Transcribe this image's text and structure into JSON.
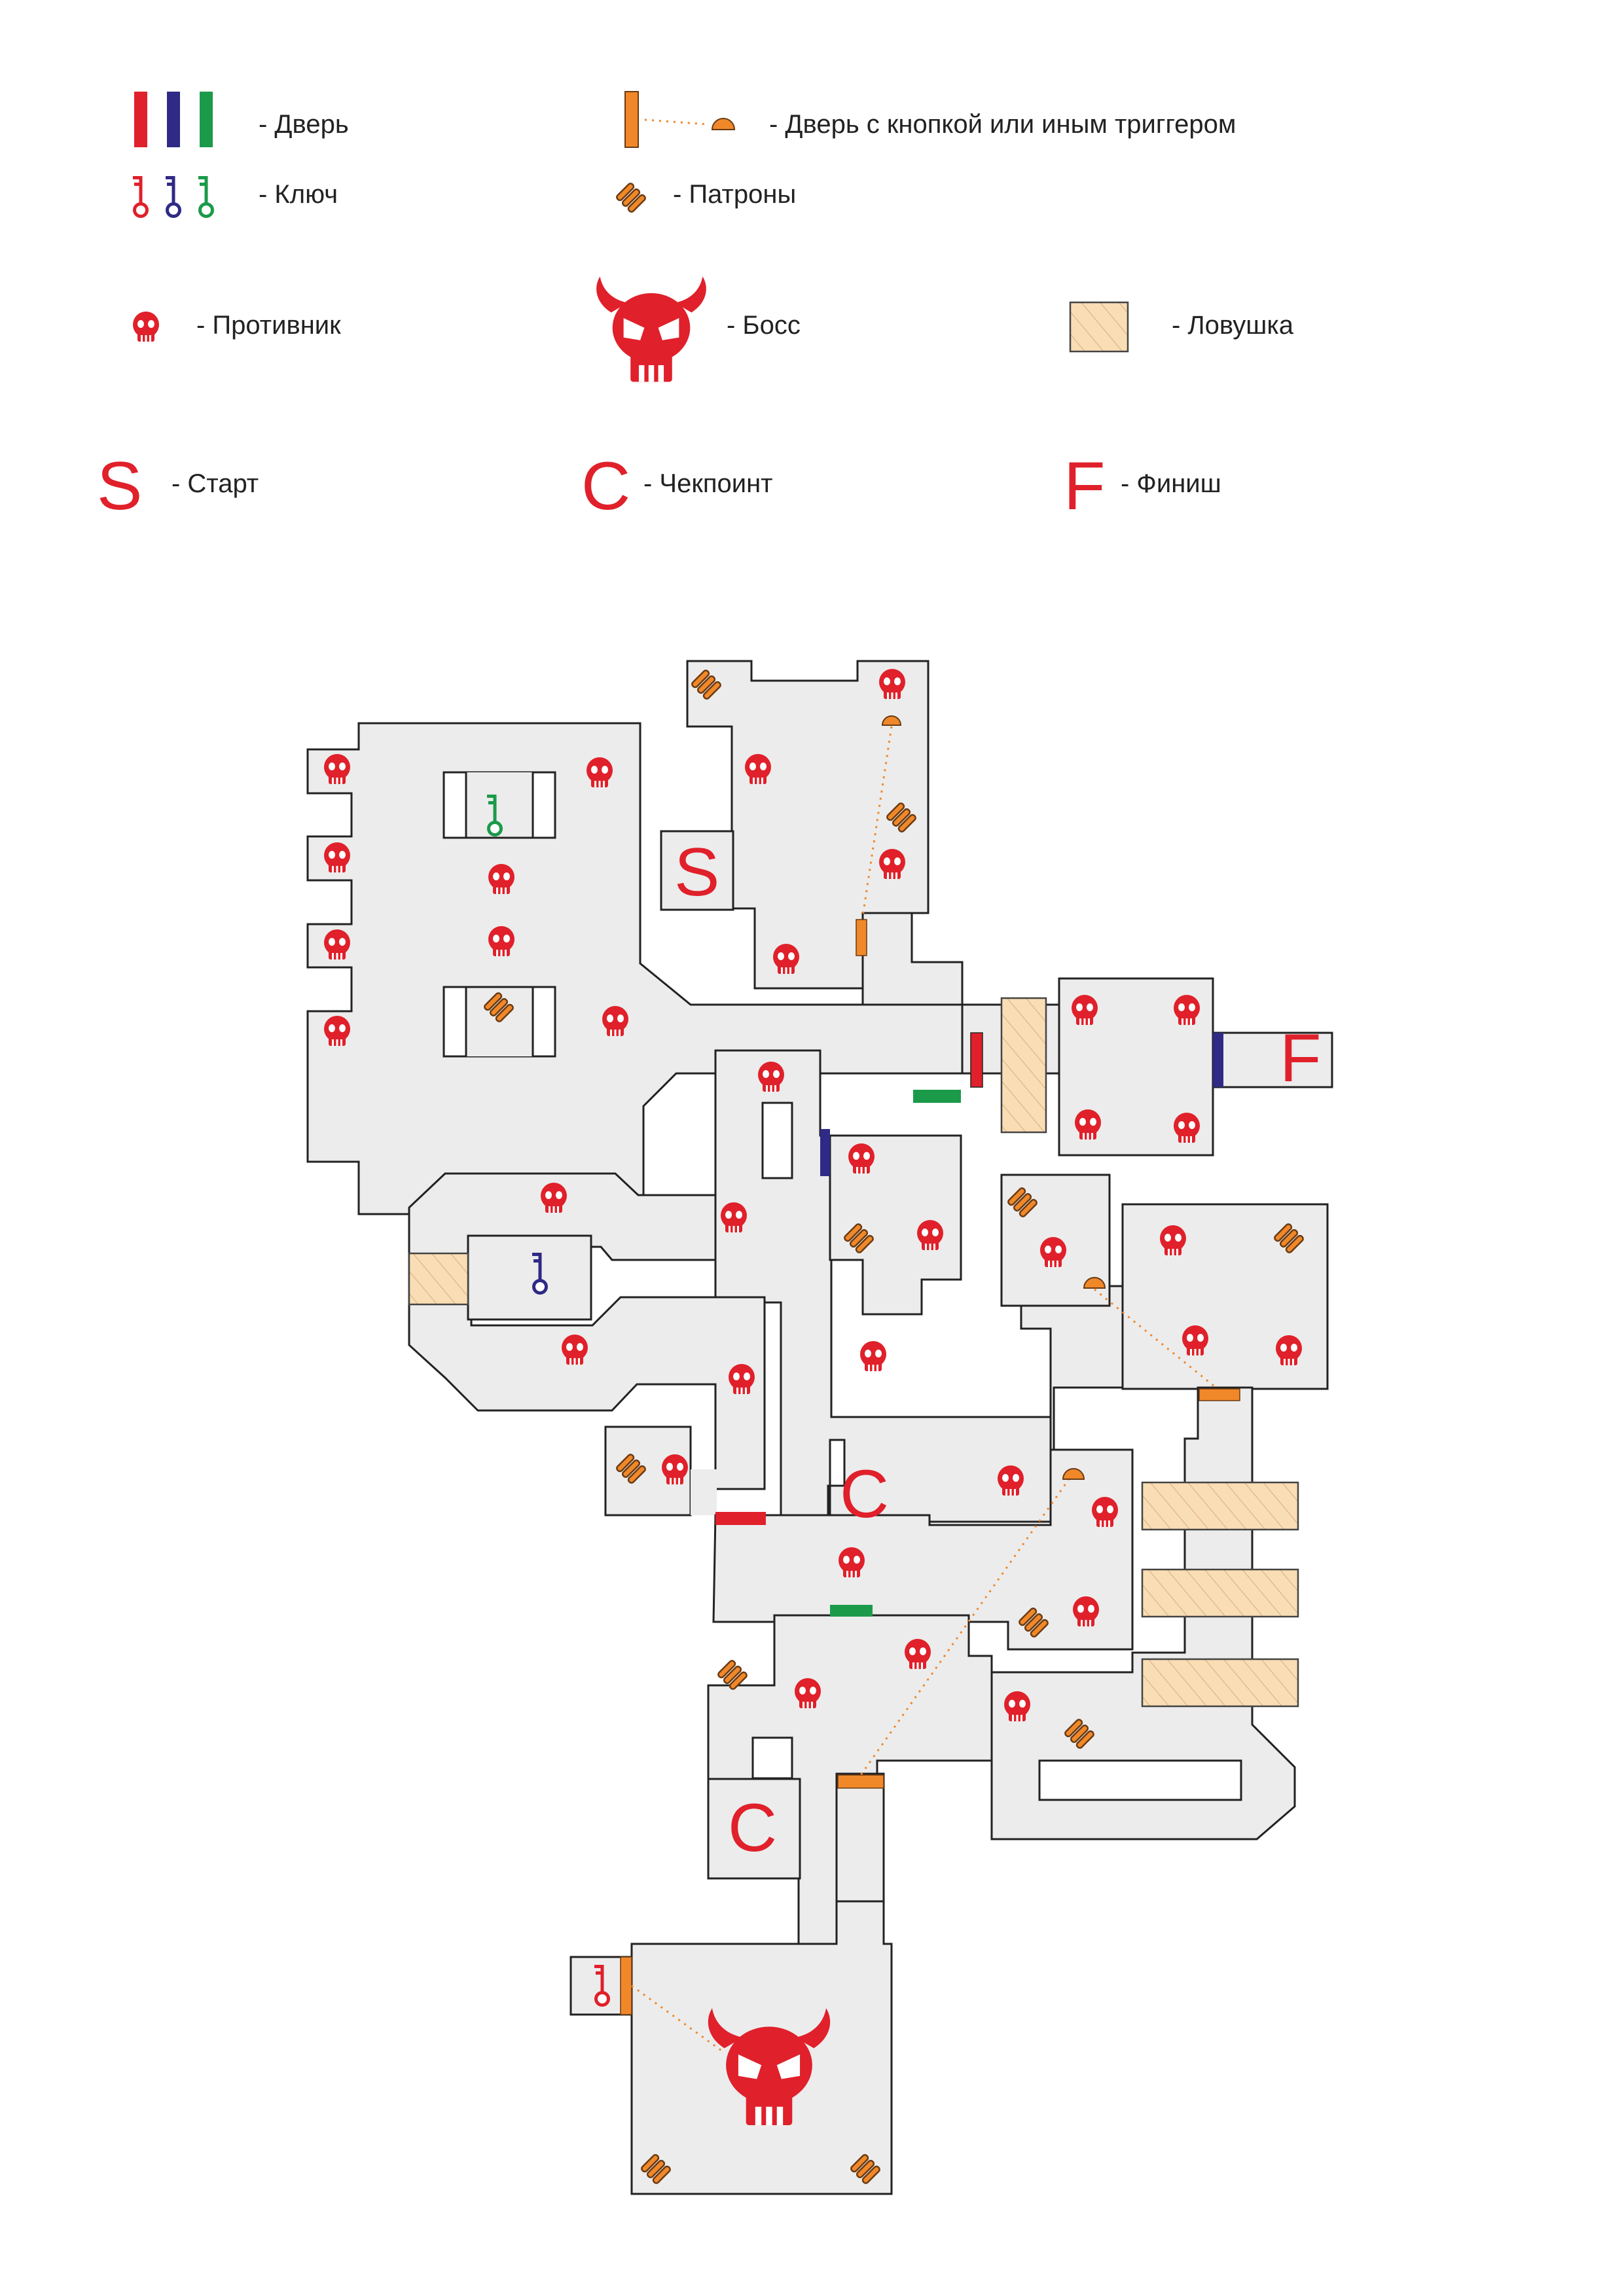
{
  "legend": {
    "door": "- Дверь",
    "trigger_door": "- Дверь с кнопкой или иным триггером",
    "key": "- Ключ",
    "ammo": "- Патроны",
    "enemy": "- Противник",
    "boss": "- Босс",
    "trap": "- Ловушка",
    "start": "- Старт",
    "checkpoint": "- Чекпоинт",
    "finish": "- Финиш"
  },
  "letters": {
    "start": "S",
    "checkpoint": "C",
    "finish": "F"
  },
  "colors": {
    "red": "#e0202a",
    "blue": "#2f2a85",
    "green": "#1b9a4a",
    "orange": "#f0882a",
    "floor": "#ececec",
    "trap": "#f9ddb4"
  },
  "icons": {
    "door": "door-bar-icon",
    "key": "key-icon",
    "ammo": "ammo-icon",
    "enemy": "enemy-skull-icon",
    "boss": "boss-skull-icon",
    "trap": "trap-tile-icon",
    "trigger": "trigger-button-icon"
  }
}
